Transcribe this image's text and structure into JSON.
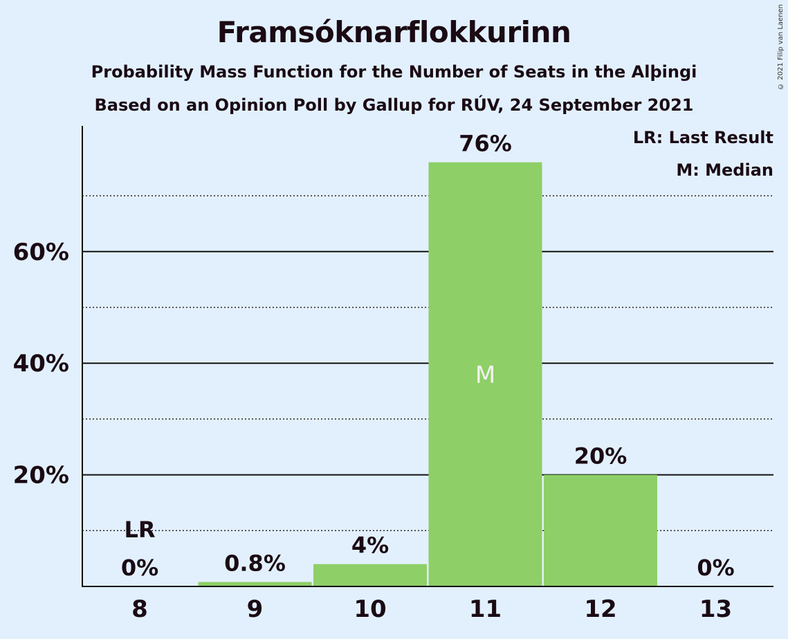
{
  "chart_data": {
    "type": "bar",
    "title": "Framsóknarflokkurinn",
    "subtitle": "Probability Mass Function for the Number of Seats in the Alþingi",
    "subtitle2": "Based on an Opinion Poll by Gallup for RÚV, 24 September 2021",
    "categories": [
      "8",
      "9",
      "10",
      "11",
      "12",
      "13"
    ],
    "values": [
      0,
      0.8,
      4,
      76,
      20,
      0
    ],
    "value_labels": [
      "0%",
      "0.8%",
      "4%",
      "76%",
      "20%",
      "0%"
    ],
    "ytick_values": [
      20,
      40,
      60
    ],
    "ytick_labels": [
      "20%",
      "40%",
      "60%"
    ],
    "dotted_grid": [
      10,
      30,
      50,
      70
    ],
    "ylim": [
      0,
      82
    ],
    "last_result_category": "8",
    "median_category": "11",
    "last_result_marker": "LR",
    "median_marker": "M",
    "legend": [
      "LR: Last Result",
      "M: Median"
    ],
    "bar_color": "#8ecf67",
    "background": "#e2f0fd"
  },
  "copyright": "© 2021 Filip van Laenen"
}
